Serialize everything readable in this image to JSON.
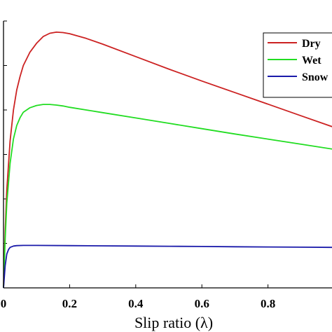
{
  "chart_data": {
    "type": "line",
    "xlabel": "Slip ratio (λ)",
    "xlim": [
      0,
      1
    ],
    "ylim": [
      0,
      1.2
    ],
    "x_ticks": [
      "0",
      "0.2",
      "0.4",
      "0.6",
      "0.8"
    ],
    "x_tick_values": [
      0,
      0.2,
      0.4,
      0.6,
      0.8
    ],
    "legend": {
      "placement": "top-right"
    },
    "series": [
      {
        "name": "Dry",
        "color": "#cc2222",
        "x": [
          0,
          0.005,
          0.01,
          0.02,
          0.03,
          0.04,
          0.05,
          0.06,
          0.08,
          0.1,
          0.12,
          0.14,
          0.16,
          0.18,
          0.2,
          0.25,
          0.3,
          0.4,
          0.5,
          0.6,
          0.7,
          0.8,
          0.9,
          1.0
        ],
        "y": [
          0,
          0.26,
          0.44,
          0.66,
          0.8,
          0.89,
          0.95,
          1.0,
          1.06,
          1.1,
          1.13,
          1.145,
          1.15,
          1.148,
          1.143,
          1.122,
          1.096,
          1.04,
          0.984,
          0.93,
          0.878,
          0.826,
          0.774,
          0.722
        ]
      },
      {
        "name": "Wet",
        "color": "#22dd22",
        "x": [
          0,
          0.005,
          0.01,
          0.02,
          0.03,
          0.04,
          0.05,
          0.06,
          0.08,
          0.1,
          0.12,
          0.14,
          0.16,
          0.18,
          0.2,
          0.25,
          0.3,
          0.4,
          0.5,
          0.6,
          0.7,
          0.8,
          0.9,
          1.0
        ],
        "y": [
          0,
          0.22,
          0.38,
          0.56,
          0.67,
          0.73,
          0.765,
          0.79,
          0.81,
          0.82,
          0.825,
          0.825,
          0.822,
          0.818,
          0.812,
          0.8,
          0.788,
          0.764,
          0.74,
          0.716,
          0.692,
          0.669,
          0.646,
          0.623
        ]
      },
      {
        "name": "Snow",
        "color": "#1a1aaa",
        "x": [
          0,
          0.005,
          0.01,
          0.015,
          0.02,
          0.03,
          0.04,
          0.06,
          0.08,
          0.1,
          0.2,
          0.3,
          0.4,
          0.5,
          0.6,
          0.7,
          0.8,
          0.9,
          1.0
        ],
        "y": [
          0,
          0.1,
          0.152,
          0.172,
          0.182,
          0.188,
          0.19,
          0.191,
          0.191,
          0.191,
          0.19,
          0.189,
          0.188,
          0.187,
          0.186,
          0.185,
          0.184,
          0.183,
          0.182
        ]
      }
    ]
  }
}
